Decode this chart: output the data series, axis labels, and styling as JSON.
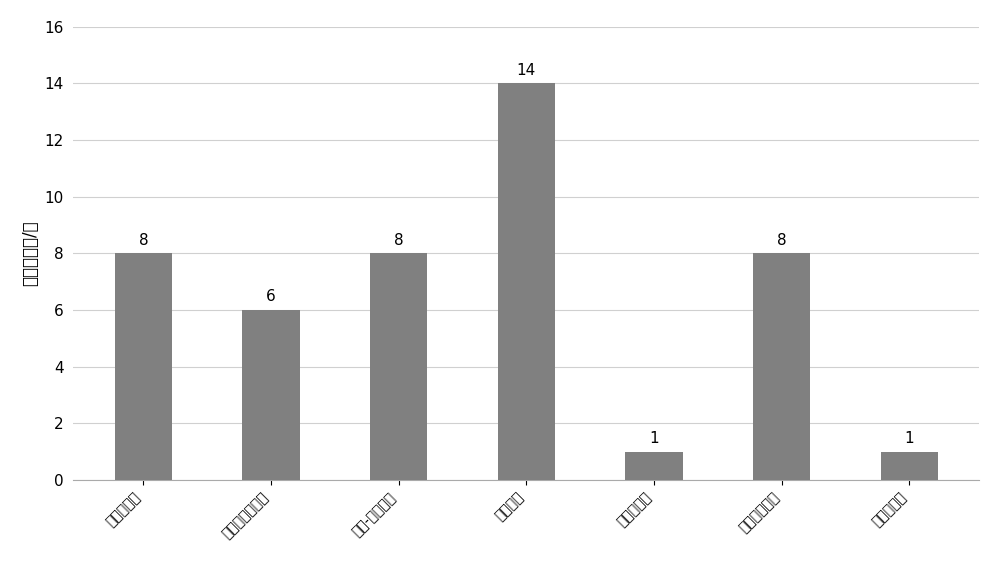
{
  "categories": [
    "马改氏试剂",
    "改良马改氏试剂",
    "祉酸-硫酸试剂",
    "西门试剂",
    "础香鉤试剂",
    "香荚兰素试剂",
    "硫酸铜试剂"
  ],
  "values": [
    8,
    6,
    8,
    14,
    1,
    8,
    1
  ],
  "bar_color": "#808080",
  "ylabel": "显色丰富度/种",
  "ylim": [
    0,
    16
  ],
  "yticks": [
    0,
    2,
    4,
    6,
    8,
    10,
    12,
    14,
    16
  ],
  "bar_width": 0.45,
  "tick_fontsize": 11,
  "ylabel_fontsize": 12,
  "value_label_fontsize": 11,
  "background_color": "#ffffff",
  "grid_color": "#d0d0d0"
}
